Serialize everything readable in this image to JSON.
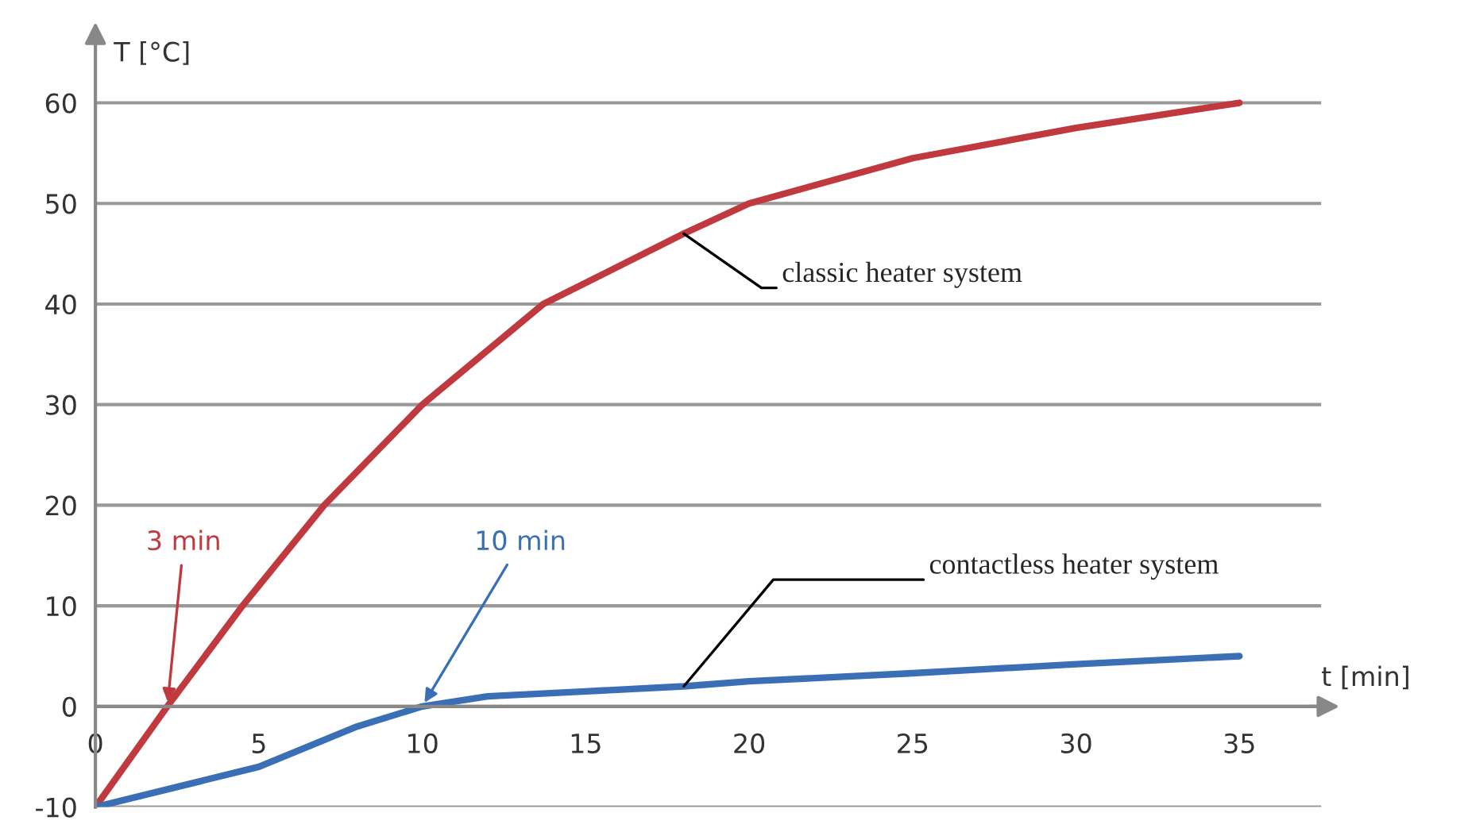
{
  "chart_data": {
    "type": "line",
    "xlabel": "t [min]",
    "ylabel": "T [°C]",
    "x": [
      0,
      2.2,
      4.5,
      7,
      10,
      13.7,
      18,
      20,
      25,
      30,
      35
    ],
    "series": [
      {
        "name": "classic heater system",
        "color": "#c0393f",
        "values": [
          -10,
          0,
          10,
          20,
          30,
          40,
          47,
          50,
          54.5,
          57.5,
          60
        ]
      },
      {
        "name": "contactless heater system",
        "color": "#3a6fb5",
        "x": [
          0,
          5,
          8,
          10,
          12,
          15,
          18,
          20,
          25,
          30,
          35
        ],
        "values": [
          -10,
          -6,
          -2,
          0,
          1,
          1.5,
          2,
          2.5,
          3.3,
          4.2,
          5
        ]
      }
    ],
    "xlim": [
      0,
      37.5
    ],
    "ylim": [
      -10,
      66.5
    ],
    "xticks": [
      0,
      5,
      10,
      15,
      20,
      25,
      30,
      35
    ],
    "yticks": [
      -10,
      0,
      10,
      20,
      30,
      40,
      50,
      60
    ],
    "grid": "y",
    "legend": false,
    "marker": "none",
    "line_style": "solid",
    "annotations": [
      {
        "text": "3 min",
        "x": 2.2,
        "y": 0
      },
      {
        "text": "10 min",
        "x": 10,
        "y": 0
      }
    ]
  }
}
